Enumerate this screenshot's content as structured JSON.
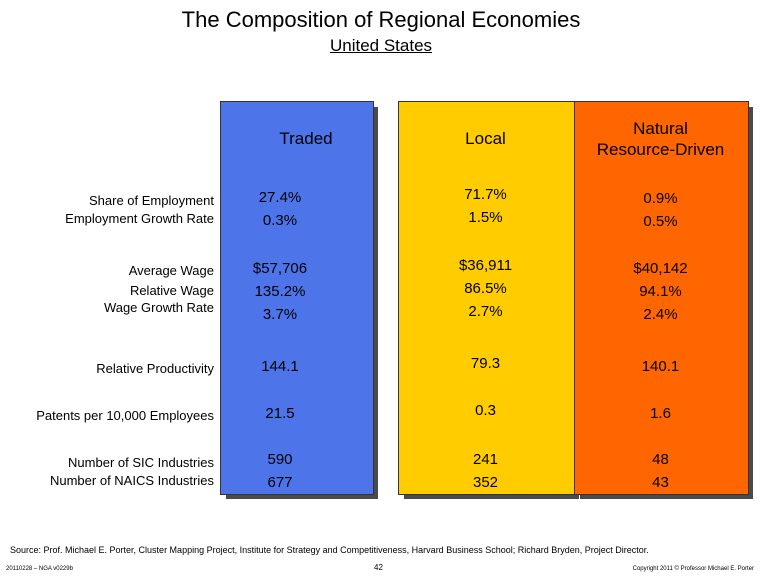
{
  "title": "The Composition of Regional Economies",
  "subtitle": "United States",
  "columns": {
    "traded": {
      "header": "Traded",
      "employment_share": "27.4%",
      "employment_growth": "0.3%",
      "avg_wage": "$57,706",
      "relative_wage": "135.2%",
      "wage_growth": "3.7%",
      "productivity": "144.1",
      "patents": "21.5",
      "sic": "590",
      "naics": "677"
    },
    "local": {
      "header": "Local",
      "employment_share": "71.7%",
      "employment_growth": "1.5%",
      "avg_wage": "$36,911",
      "relative_wage": "86.5%",
      "wage_growth": "2.7%",
      "productivity": "79.3",
      "patents": "0.3",
      "sic": "241",
      "naics": "352"
    },
    "natural": {
      "header_line1": "Natural",
      "header_line2": "Resource-Driven",
      "employment_share": "0.9%",
      "employment_growth": "0.5%",
      "avg_wage": "$40,142",
      "relative_wage": "94.1%",
      "wage_growth": "2.4%",
      "productivity": "140.1",
      "patents": "1.6",
      "sic": "48",
      "naics": "43"
    }
  },
  "row_labels": {
    "employment_share": "Share of Employment",
    "employment_growth": "Employment Growth Rate",
    "avg_wage": "Average Wage",
    "relative_wage": "Relative Wage",
    "wage_growth": "Wage Growth Rate",
    "productivity": "Relative Productivity",
    "patents": "Patents per 10,000 Employees",
    "sic": "Number of SIC Industries",
    "naics": "Number of NAICS Industries"
  },
  "source": "Source:  Prof. Michael E. Porter, Cluster Mapping Project, Institute for Strategy and Competitiveness, Harvard Business School; Richard Bryden, Project Director.",
  "footer": {
    "left": "20110228 – NGA v0229b",
    "page": "42",
    "right": "Copyright 2011 © Professor Michael E. Porter"
  },
  "colors": {
    "traded": "#4d74e8",
    "local": "#ffcc00",
    "natural": "#ff6600"
  }
}
